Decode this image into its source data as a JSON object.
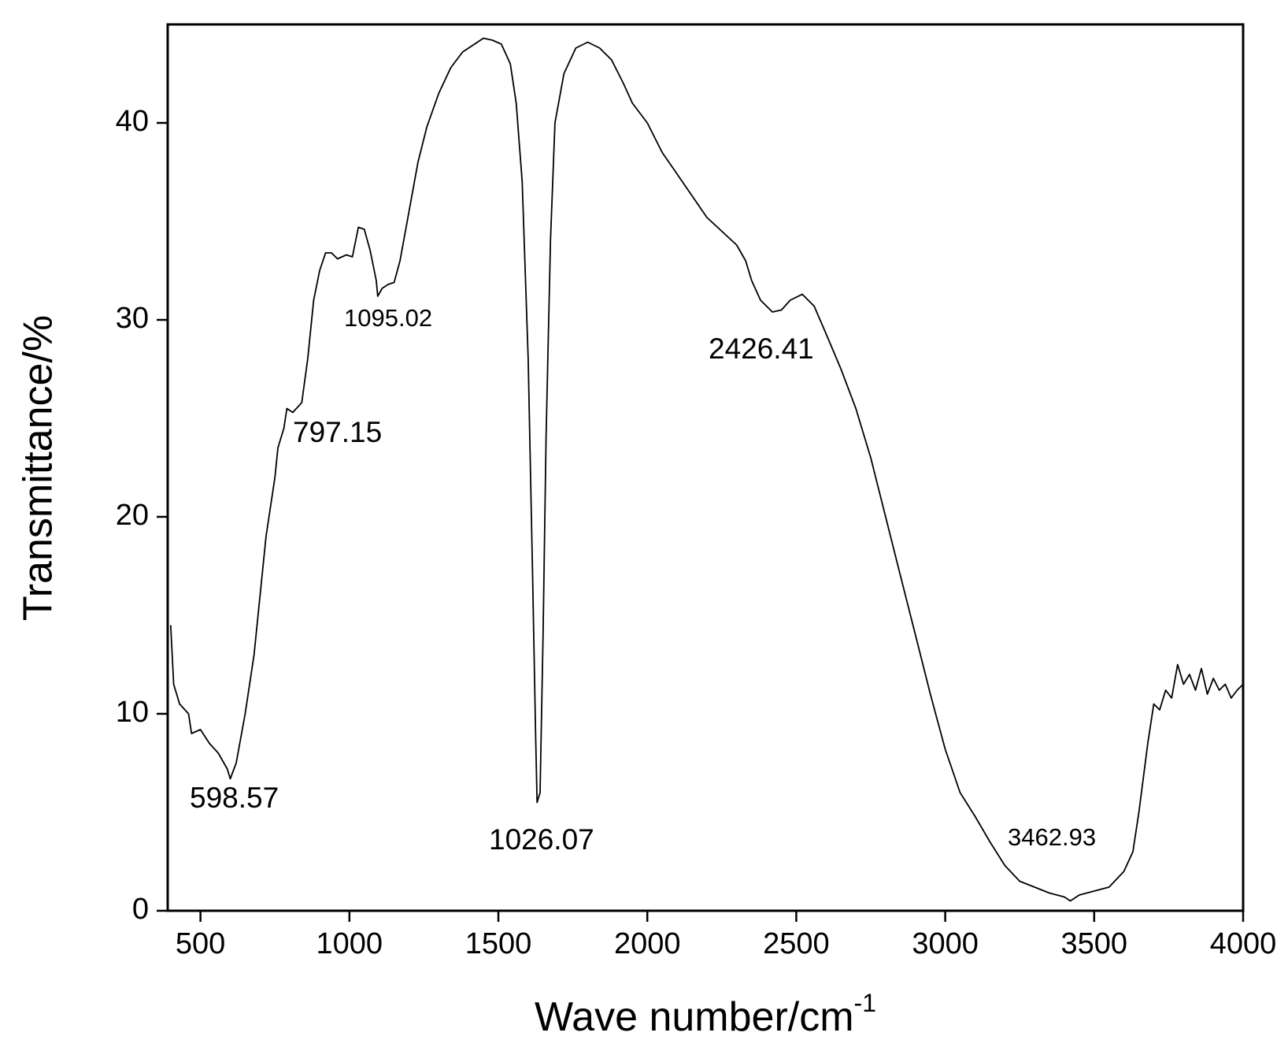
{
  "chart_data": {
    "type": "line",
    "xlabel": "Wave number/cm",
    "xlabel_superscript": "-1",
    "ylabel": "Transmittance/%",
    "x": [
      400,
      410,
      430,
      460,
      470,
      500,
      530,
      560,
      590,
      600,
      620,
      650,
      680,
      700,
      720,
      750,
      760,
      780,
      790,
      810,
      840,
      860,
      880,
      900,
      920,
      940,
      960,
      990,
      1010,
      1030,
      1050,
      1070,
      1090,
      1095,
      1110,
      1130,
      1150,
      1170,
      1200,
      1230,
      1260,
      1300,
      1340,
      1380,
      1420,
      1450,
      1480,
      1510,
      1540,
      1560,
      1580,
      1600,
      1615,
      1625,
      1630,
      1640,
      1650,
      1660,
      1675,
      1690,
      1720,
      1760,
      1800,
      1840,
      1880,
      1920,
      1950,
      2000,
      2050,
      2100,
      2150,
      2200,
      2250,
      2300,
      2330,
      2350,
      2380,
      2420,
      2450,
      2480,
      2520,
      2560,
      2600,
      2650,
      2700,
      2750,
      2800,
      2850,
      2900,
      2950,
      3000,
      3050,
      3100,
      3150,
      3200,
      3250,
      3300,
      3350,
      3400,
      3420,
      3450,
      3500,
      3550,
      3600,
      3630,
      3650,
      3680,
      3700,
      3720,
      3740,
      3760,
      3780,
      3800,
      3820,
      3840,
      3860,
      3880,
      3900,
      3920,
      3940,
      3960,
      3980,
      4000
    ],
    "values": [
      14.5,
      11.5,
      10.5,
      10,
      9,
      9.2,
      8.5,
      8,
      7.2,
      6.7,
      7.5,
      10,
      13,
      16,
      19,
      22,
      23.5,
      24.5,
      25.5,
      25.3,
      25.8,
      28,
      31,
      32.5,
      33.4,
      33.4,
      33.1,
      33.3,
      33.2,
      34.7,
      34.6,
      33.5,
      32,
      31.2,
      31.6,
      31.8,
      31.9,
      33,
      35.5,
      38,
      39.8,
      41.5,
      42.8,
      43.6,
      44,
      44.3,
      44.2,
      44,
      43,
      41,
      37,
      28,
      17,
      9,
      5.5,
      6,
      14,
      24,
      34,
      40,
      42.5,
      43.8,
      44.1,
      43.8,
      43.2,
      42,
      41,
      40,
      38.5,
      37.4,
      36.3,
      35.2,
      34.5,
      33.8,
      33,
      32,
      31,
      30.4,
      30.5,
      31,
      31.3,
      30.7,
      29.3,
      27.5,
      25.5,
      23,
      20,
      17,
      14,
      11,
      8.2,
      6,
      4.8,
      3.5,
      2.3,
      1.5,
      1.2,
      0.9,
      0.7,
      0.5,
      0.8,
      1,
      1.2,
      2,
      3,
      5,
      8.5,
      10.5,
      10.2,
      11.2,
      10.8,
      12.5,
      11.5,
      12,
      11.2,
      12.3,
      11,
      11.8,
      11.2,
      11.5,
      10.8,
      11.2,
      11.5
    ],
    "color": "#000000",
    "xlim": [
      390,
      4000
    ],
    "ylim": [
      0,
      45
    ],
    "xticks": [
      500,
      1000,
      1500,
      2000,
      2500,
      3000,
      3500,
      4000
    ],
    "yticks": [
      0,
      10,
      20,
      30,
      40
    ],
    "annotations": [
      "598.57",
      "797.15",
      "1095.02",
      "1026.07",
      "2426.41",
      "3462.93"
    ]
  }
}
